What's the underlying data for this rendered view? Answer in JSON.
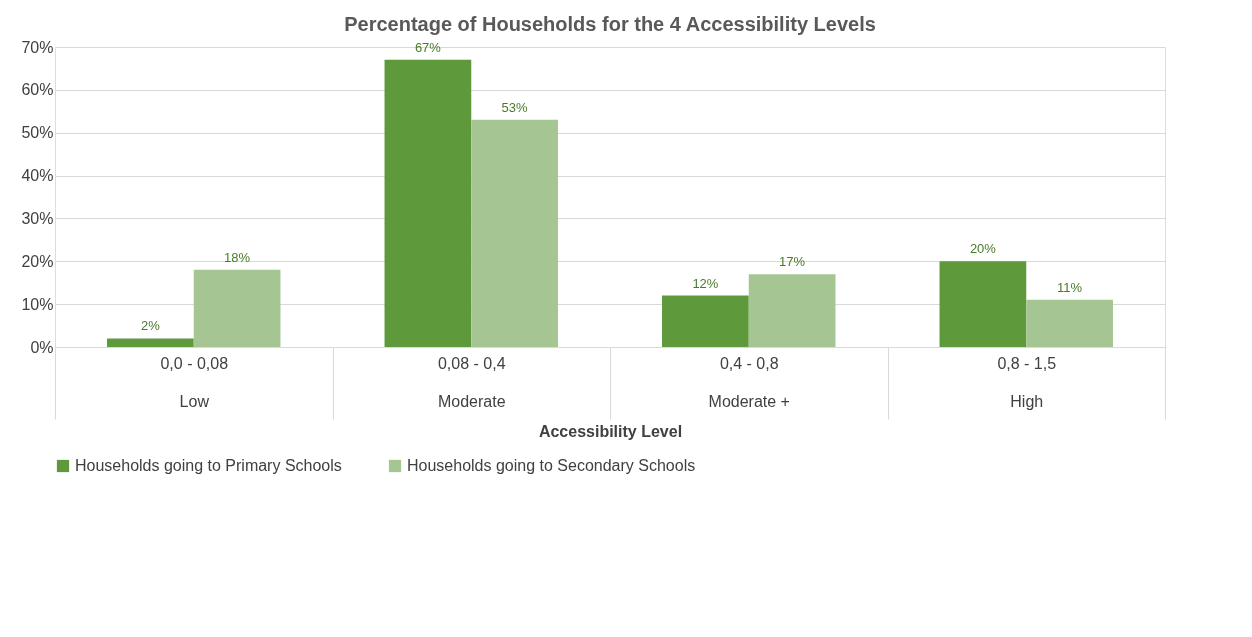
{
  "chart_data": {
    "type": "bar",
    "title": "Percentage of Households for the 4 Accessibility Levels",
    "xlabel": "Accessibility Level",
    "categories": [
      "0,0 - 0,08\nLow",
      "0,08 - 0,4\nModerate",
      "0,4 - 0,8\nModerate +",
      "0,8 - 1,5\nHigh"
    ],
    "series": [
      {
        "name": "Households going to  Primary Schools",
        "color": "#5e9a3c",
        "values": [
          2,
          67,
          12,
          20
        ],
        "value_labels": [
          "2%",
          "67%",
          "12%",
          "20%"
        ]
      },
      {
        "name": "Households going to Secondary Schools",
        "color": "#a5c693",
        "values": [
          18,
          53,
          17,
          11
        ],
        "value_labels": [
          "18%",
          "53%",
          "17%",
          "11%"
        ]
      }
    ],
    "ylim": [
      0,
      70
    ],
    "yticks": [
      {
        "value": 0,
        "label": "0%"
      },
      {
        "value": 10,
        "label": "10%"
      },
      {
        "value": 20,
        "label": "20%"
      },
      {
        "value": 30,
        "label": "30%"
      },
      {
        "value": 40,
        "label": "40%"
      },
      {
        "value": 50,
        "label": "50%"
      },
      {
        "value": 60,
        "label": "60%"
      },
      {
        "value": 70,
        "label": "70%"
      }
    ],
    "grid": "y",
    "legend": "bottom"
  }
}
